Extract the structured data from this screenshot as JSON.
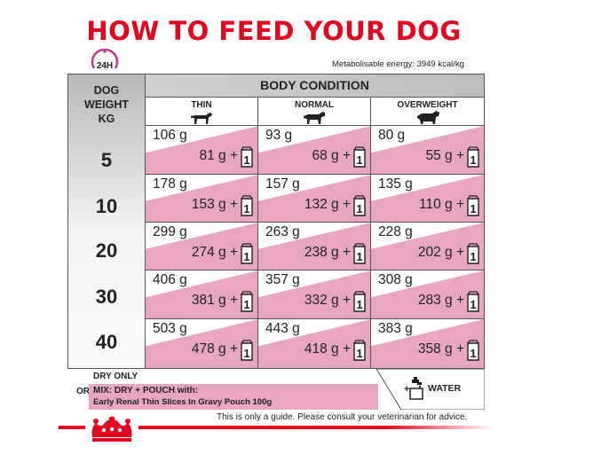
{
  "title": "HOW TO FEED YOUR DOG",
  "clock_label": "24H",
  "energy": "Metabolisable energy: 3949 kcal/kg",
  "weight_header": [
    "DOG",
    "WEIGHT",
    "KG"
  ],
  "body_condition_header": "BODY CONDITION",
  "columns": [
    {
      "label": "THIN",
      "icon": "thin-dog-icon"
    },
    {
      "label": "NORMAL",
      "icon": "normal-dog-icon"
    },
    {
      "label": "OVERWEIGHT",
      "icon": "overweight-dog-icon"
    }
  ],
  "rows": [
    {
      "weight": "5",
      "cells": [
        {
          "dry": "106 g",
          "mix": "81 g +"
        },
        {
          "dry": "93 g",
          "mix": "68 g +"
        },
        {
          "dry": "80 g",
          "mix": "55 g +"
        }
      ]
    },
    {
      "weight": "10",
      "cells": [
        {
          "dry": "178 g",
          "mix": "153 g +"
        },
        {
          "dry": "157 g",
          "mix": "132 g +"
        },
        {
          "dry": "135 g",
          "mix": "110 g +"
        }
      ]
    },
    {
      "weight": "20",
      "cells": [
        {
          "dry": "299 g",
          "mix": "274 g +"
        },
        {
          "dry": "263 g",
          "mix": "238 g +"
        },
        {
          "dry": "228 g",
          "mix": "202 g +"
        }
      ]
    },
    {
      "weight": "30",
      "cells": [
        {
          "dry": "406 g",
          "mix": "381 g +"
        },
        {
          "dry": "357 g",
          "mix": "332 g +"
        },
        {
          "dry": "308 g",
          "mix": "283 g +"
        }
      ]
    },
    {
      "weight": "40",
      "cells": [
        {
          "dry": "503 g",
          "mix": "478 g +"
        },
        {
          "dry": "443 g",
          "mix": "418 g +"
        },
        {
          "dry": "383 g",
          "mix": "358 g +"
        }
      ]
    }
  ],
  "pouch_count": "1",
  "legend": {
    "dry_only": "DRY ONLY",
    "or": "OR",
    "mix_line1": "MIX: DRY + POUCH with:",
    "mix_line2": "Early Renal Thin Slices In Gravy Pouch 100g",
    "water": "WATER",
    "plus": "+"
  },
  "footer_note": "This is only a guide. Please consult your veterinarian for advice.",
  "colors": {
    "brand_red": "#e4061f",
    "pink": "#e8a6c2",
    "clock": "#c0398f"
  }
}
